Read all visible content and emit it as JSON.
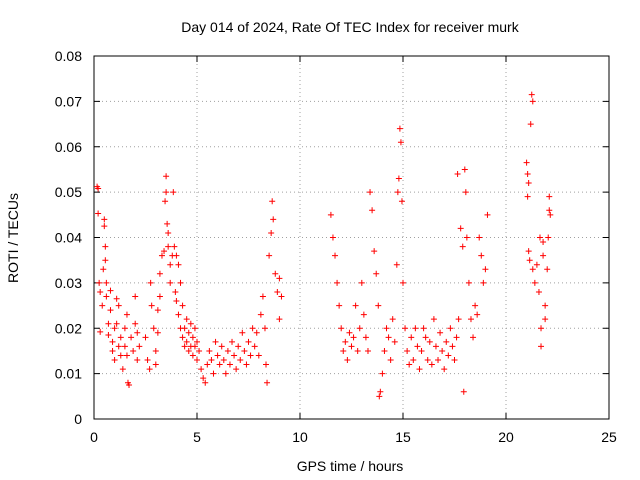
{
  "chart_data": {
    "type": "scatter",
    "title": "Day 014 of 2024, Rate Of TEC Index for receiver murk",
    "xlabel": "GPS time / hours",
    "ylabel": "ROTI / TECUs",
    "xlim": [
      0,
      25
    ],
    "ylim": [
      0,
      0.08
    ],
    "xticks": [
      "0",
      "5",
      "10",
      "15",
      "20",
      "25"
    ],
    "yticks": [
      "0",
      "0.01",
      "0.02",
      "0.03",
      "0.04",
      "0.05",
      "0.06",
      "0.07",
      "0.08"
    ],
    "grid": true,
    "marker": "+",
    "color": "#ff0000",
    "series": [
      {
        "points": [
          [
            0.15,
            0.0512
          ],
          [
            0.2,
            0.0508
          ],
          [
            0.2,
            0.0453
          ],
          [
            0.25,
            0.03
          ],
          [
            0.3,
            0.028
          ],
          [
            0.3,
            0.0192
          ],
          [
            0.4,
            0.025
          ],
          [
            0.45,
            0.033
          ],
          [
            0.5,
            0.044
          ],
          [
            0.5,
            0.0425
          ],
          [
            0.55,
            0.038
          ],
          [
            0.55,
            0.035
          ],
          [
            0.6,
            0.03
          ],
          [
            0.6,
            0.027
          ],
          [
            0.7,
            0.021
          ],
          [
            0.7,
            0.0185
          ],
          [
            0.8,
            0.024
          ],
          [
            0.8,
            0.0283
          ],
          [
            0.9,
            0.015
          ],
          [
            0.9,
            0.017
          ],
          [
            1.0,
            0.02
          ],
          [
            1.0,
            0.013
          ],
          [
            1.1,
            0.0265
          ],
          [
            1.1,
            0.021
          ],
          [
            1.2,
            0.016
          ],
          [
            1.2,
            0.025
          ],
          [
            1.3,
            0.014
          ],
          [
            1.3,
            0.018
          ],
          [
            1.4,
            0.011
          ],
          [
            1.5,
            0.02
          ],
          [
            1.5,
            0.016
          ],
          [
            1.6,
            0.014
          ],
          [
            1.6,
            0.023
          ],
          [
            1.65,
            0.008
          ],
          [
            1.7,
            0.0075
          ],
          [
            1.8,
            0.018
          ],
          [
            1.9,
            0.015
          ],
          [
            2.0,
            0.021
          ],
          [
            2.0,
            0.027
          ],
          [
            2.1,
            0.013
          ],
          [
            2.1,
            0.019
          ],
          [
            2.2,
            0.016
          ],
          [
            2.5,
            0.018
          ],
          [
            2.6,
            0.013
          ],
          [
            2.7,
            0.011
          ],
          [
            2.75,
            0.03
          ],
          [
            2.8,
            0.025
          ],
          [
            2.9,
            0.02
          ],
          [
            3.0,
            0.015
          ],
          [
            3.0,
            0.012
          ],
          [
            3.1,
            0.019
          ],
          [
            3.1,
            0.024
          ],
          [
            3.2,
            0.027
          ],
          [
            3.2,
            0.032
          ],
          [
            3.3,
            0.036
          ],
          [
            3.4,
            0.037
          ],
          [
            3.45,
            0.048
          ],
          [
            3.5,
            0.0535
          ],
          [
            3.5,
            0.05
          ],
          [
            3.55,
            0.043
          ],
          [
            3.6,
            0.041
          ],
          [
            3.6,
            0.038
          ],
          [
            3.7,
            0.03
          ],
          [
            3.7,
            0.034
          ],
          [
            3.8,
            0.036
          ],
          [
            3.85,
            0.05
          ],
          [
            3.9,
            0.038
          ],
          [
            3.95,
            0.028
          ],
          [
            4.0,
            0.036
          ],
          [
            4.0,
            0.026
          ],
          [
            4.1,
            0.034
          ],
          [
            4.1,
            0.023
          ],
          [
            4.2,
            0.03
          ],
          [
            4.2,
            0.02
          ],
          [
            4.3,
            0.025
          ],
          [
            4.3,
            0.018
          ],
          [
            4.4,
            0.02
          ],
          [
            4.4,
            0.016
          ],
          [
            4.5,
            0.017
          ],
          [
            4.5,
            0.022
          ],
          [
            4.6,
            0.015
          ],
          [
            4.6,
            0.019
          ],
          [
            4.7,
            0.016
          ],
          [
            4.7,
            0.021
          ],
          [
            4.8,
            0.014
          ],
          [
            4.8,
            0.018
          ],
          [
            4.9,
            0.016
          ],
          [
            4.9,
            0.02
          ],
          [
            5.0,
            0.013
          ],
          [
            5.0,
            0.017
          ],
          [
            5.1,
            0.015
          ],
          [
            5.2,
            0.011
          ],
          [
            5.3,
            0.009
          ],
          [
            5.4,
            0.008
          ],
          [
            5.5,
            0.012
          ],
          [
            5.6,
            0.015
          ],
          [
            5.7,
            0.013
          ],
          [
            5.8,
            0.01
          ],
          [
            5.9,
            0.017
          ],
          [
            6.0,
            0.014
          ],
          [
            6.1,
            0.012
          ],
          [
            6.2,
            0.016
          ],
          [
            6.3,
            0.013
          ],
          [
            6.4,
            0.01
          ],
          [
            6.5,
            0.015
          ],
          [
            6.6,
            0.012
          ],
          [
            6.7,
            0.017
          ],
          [
            6.8,
            0.014
          ],
          [
            6.9,
            0.011
          ],
          [
            7.0,
            0.016
          ],
          [
            7.1,
            0.013
          ],
          [
            7.2,
            0.019
          ],
          [
            7.3,
            0.015
          ],
          [
            7.4,
            0.012
          ],
          [
            7.5,
            0.017
          ],
          [
            7.6,
            0.014
          ],
          [
            7.7,
            0.02
          ],
          [
            7.8,
            0.016
          ],
          [
            7.9,
            0.019
          ],
          [
            8.0,
            0.014
          ],
          [
            8.1,
            0.023
          ],
          [
            8.2,
            0.027
          ],
          [
            8.3,
            0.02
          ],
          [
            8.35,
            0.012
          ],
          [
            8.4,
            0.008
          ],
          [
            8.5,
            0.036
          ],
          [
            8.6,
            0.041
          ],
          [
            8.65,
            0.048
          ],
          [
            8.7,
            0.044
          ],
          [
            8.8,
            0.032
          ],
          [
            8.9,
            0.028
          ],
          [
            9.0,
            0.031
          ],
          [
            9.0,
            0.022
          ],
          [
            9.1,
            0.027
          ],
          [
            11.5,
            0.045
          ],
          [
            11.6,
            0.04
          ],
          [
            11.7,
            0.036
          ],
          [
            11.8,
            0.03
          ],
          [
            11.9,
            0.025
          ],
          [
            12.0,
            0.02
          ],
          [
            12.1,
            0.015
          ],
          [
            12.2,
            0.017
          ],
          [
            12.3,
            0.013
          ],
          [
            12.4,
            0.019
          ],
          [
            12.5,
            0.016
          ],
          [
            12.6,
            0.018
          ],
          [
            12.7,
            0.025
          ],
          [
            12.8,
            0.015
          ],
          [
            12.9,
            0.02
          ],
          [
            13.0,
            0.03
          ],
          [
            13.1,
            0.023
          ],
          [
            13.2,
            0.018
          ],
          [
            13.3,
            0.015
          ],
          [
            13.4,
            0.05
          ],
          [
            13.5,
            0.046
          ],
          [
            13.6,
            0.037
          ],
          [
            13.7,
            0.032
          ],
          [
            13.8,
            0.025
          ],
          [
            13.85,
            0.005
          ],
          [
            13.9,
            0.006
          ],
          [
            14.0,
            0.01
          ],
          [
            14.1,
            0.015
          ],
          [
            14.2,
            0.02
          ],
          [
            14.3,
            0.018
          ],
          [
            14.4,
            0.013
          ],
          [
            14.5,
            0.022
          ],
          [
            14.6,
            0.017
          ],
          [
            14.7,
            0.034
          ],
          [
            14.75,
            0.05
          ],
          [
            14.8,
            0.053
          ],
          [
            14.85,
            0.064
          ],
          [
            14.9,
            0.061
          ],
          [
            14.95,
            0.048
          ],
          [
            15.0,
            0.03
          ],
          [
            15.1,
            0.02
          ],
          [
            15.2,
            0.015
          ],
          [
            15.3,
            0.012
          ],
          [
            15.4,
            0.018
          ],
          [
            15.5,
            0.013
          ],
          [
            15.6,
            0.02
          ],
          [
            15.7,
            0.016
          ],
          [
            15.8,
            0.011
          ],
          [
            15.9,
            0.015
          ],
          [
            16.0,
            0.02
          ],
          [
            16.1,
            0.018
          ],
          [
            16.2,
            0.013
          ],
          [
            16.3,
            0.017
          ],
          [
            16.4,
            0.012
          ],
          [
            16.5,
            0.022
          ],
          [
            16.6,
            0.016
          ],
          [
            16.7,
            0.013
          ],
          [
            16.8,
            0.019
          ],
          [
            16.9,
            0.015
          ],
          [
            17.0,
            0.011
          ],
          [
            17.1,
            0.017
          ],
          [
            17.2,
            0.014
          ],
          [
            17.3,
            0.02
          ],
          [
            17.4,
            0.016
          ],
          [
            17.5,
            0.013
          ],
          [
            17.6,
            0.018
          ],
          [
            17.65,
            0.054
          ],
          [
            17.7,
            0.022
          ],
          [
            17.8,
            0.042
          ],
          [
            17.9,
            0.038
          ],
          [
            17.95,
            0.006
          ],
          [
            18.0,
            0.055
          ],
          [
            18.05,
            0.05
          ],
          [
            18.1,
            0.04
          ],
          [
            18.2,
            0.03
          ],
          [
            18.3,
            0.022
          ],
          [
            18.4,
            0.018
          ],
          [
            18.5,
            0.025
          ],
          [
            18.6,
            0.023
          ],
          [
            18.7,
            0.04
          ],
          [
            18.8,
            0.036
          ],
          [
            18.9,
            0.03
          ],
          [
            19.0,
            0.033
          ],
          [
            19.1,
            0.045
          ],
          [
            21.0,
            0.0565
          ],
          [
            21.05,
            0.054
          ],
          [
            21.1,
            0.052
          ],
          [
            21.05,
            0.049
          ],
          [
            21.1,
            0.037
          ],
          [
            21.15,
            0.035
          ],
          [
            21.2,
            0.065
          ],
          [
            21.25,
            0.0715
          ],
          [
            21.3,
            0.07
          ],
          [
            21.3,
            0.033
          ],
          [
            21.4,
            0.03
          ],
          [
            21.5,
            0.034
          ],
          [
            21.6,
            0.028
          ],
          [
            21.65,
            0.04
          ],
          [
            21.7,
            0.02
          ],
          [
            21.7,
            0.016
          ],
          [
            21.8,
            0.039
          ],
          [
            21.8,
            0.036
          ],
          [
            21.9,
            0.025
          ],
          [
            21.9,
            0.022
          ],
          [
            22.0,
            0.033
          ],
          [
            22.05,
            0.04
          ],
          [
            22.1,
            0.049
          ],
          [
            22.1,
            0.046
          ],
          [
            22.15,
            0.045
          ]
        ]
      }
    ]
  }
}
